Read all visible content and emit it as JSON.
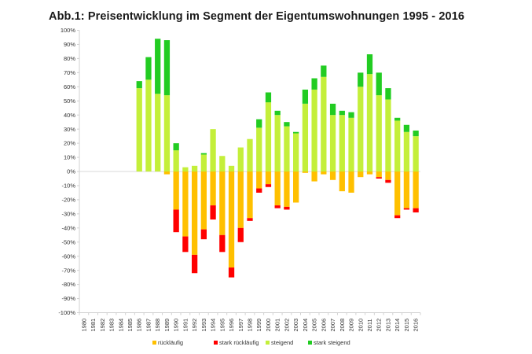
{
  "chart_data": {
    "type": "bar",
    "stacked": true,
    "title": "Abb.1: Preisentwicklung im Segment der Eigentumswohnungen 1995 - 2016",
    "ylim": [
      -100,
      100
    ],
    "y_ticks": [
      100,
      90,
      80,
      70,
      60,
      50,
      40,
      30,
      20,
      10,
      0,
      -10,
      -20,
      -30,
      -40,
      -50,
      -60,
      -70,
      -80,
      -90,
      -100
    ],
    "y_tick_labels": [
      "100%",
      "90%",
      "80%",
      "70%",
      "60%",
      "50%",
      "40%",
      "30%",
      "20%",
      "10%",
      "0%",
      "-10%",
      "-20%",
      "-30%",
      "-40%",
      "-50%",
      "-60%",
      "-70%",
      "-80%",
      "-90%",
      "-100%"
    ],
    "categories": [
      "1980",
      "1981",
      "1982",
      "1983",
      "1984",
      "1985",
      "1986",
      "1987",
      "1988",
      "1989",
      "1990",
      "1991",
      "1992",
      "1993",
      "1994",
      "1995",
      "1996",
      "1997",
      "1998",
      "1999",
      "2000",
      "2001",
      "2002",
      "2003",
      "2004",
      "2005",
      "2006",
      "2007",
      "2008",
      "2009",
      "2010",
      "2011",
      "2012",
      "2013",
      "2014",
      "2015",
      "2016"
    ],
    "series": [
      {
        "name": "rückläufig",
        "color": "#ffc000",
        "direction": "negative",
        "values": [
          0,
          0,
          0,
          0,
          0,
          0,
          0,
          0,
          0,
          -2,
          -27,
          -46,
          -59,
          -41,
          -24,
          -45,
          -68,
          -40,
          -33,
          -12,
          -9,
          -24,
          -25,
          -22,
          -1,
          -7,
          -2,
          -6,
          -14,
          -15,
          -4,
          -2,
          -4,
          -6,
          -31,
          -26,
          -26
        ]
      },
      {
        "name": "stark rückläufig",
        "color": "#ff0000",
        "direction": "negative",
        "values": [
          0,
          0,
          0,
          0,
          0,
          0,
          0,
          0,
          0,
          0,
          -16,
          -11,
          -13,
          -7,
          -10,
          -12,
          -7,
          -10,
          -2,
          -3,
          -2,
          -2,
          -2,
          0,
          0,
          0,
          0,
          0,
          0,
          0,
          0,
          0,
          -1,
          -2,
          -2,
          -1,
          -3
        ]
      },
      {
        "name": "steigend",
        "color": "#c4ef3a",
        "direction": "positive",
        "values": [
          0,
          0,
          0,
          0,
          0,
          0,
          59,
          65,
          55,
          54,
          15,
          3,
          4,
          12,
          30,
          11,
          4,
          17,
          23,
          31,
          49,
          40,
          32,
          27,
          48,
          58,
          67,
          40,
          40,
          38,
          60,
          69,
          54,
          51,
          36,
          28,
          25
        ]
      },
      {
        "name": "stark steigend",
        "color": "#22cc22",
        "direction": "positive",
        "values": [
          0,
          0,
          0,
          0,
          0,
          0,
          5,
          16,
          39,
          39,
          5,
          0,
          0,
          1,
          0,
          0,
          0,
          0,
          0,
          6,
          7,
          3,
          3,
          1,
          10,
          8,
          8,
          8,
          3,
          4,
          10,
          14,
          16,
          8,
          2,
          5,
          4
        ]
      }
    ],
    "legend_position": "bottom-center",
    "grid": false
  }
}
